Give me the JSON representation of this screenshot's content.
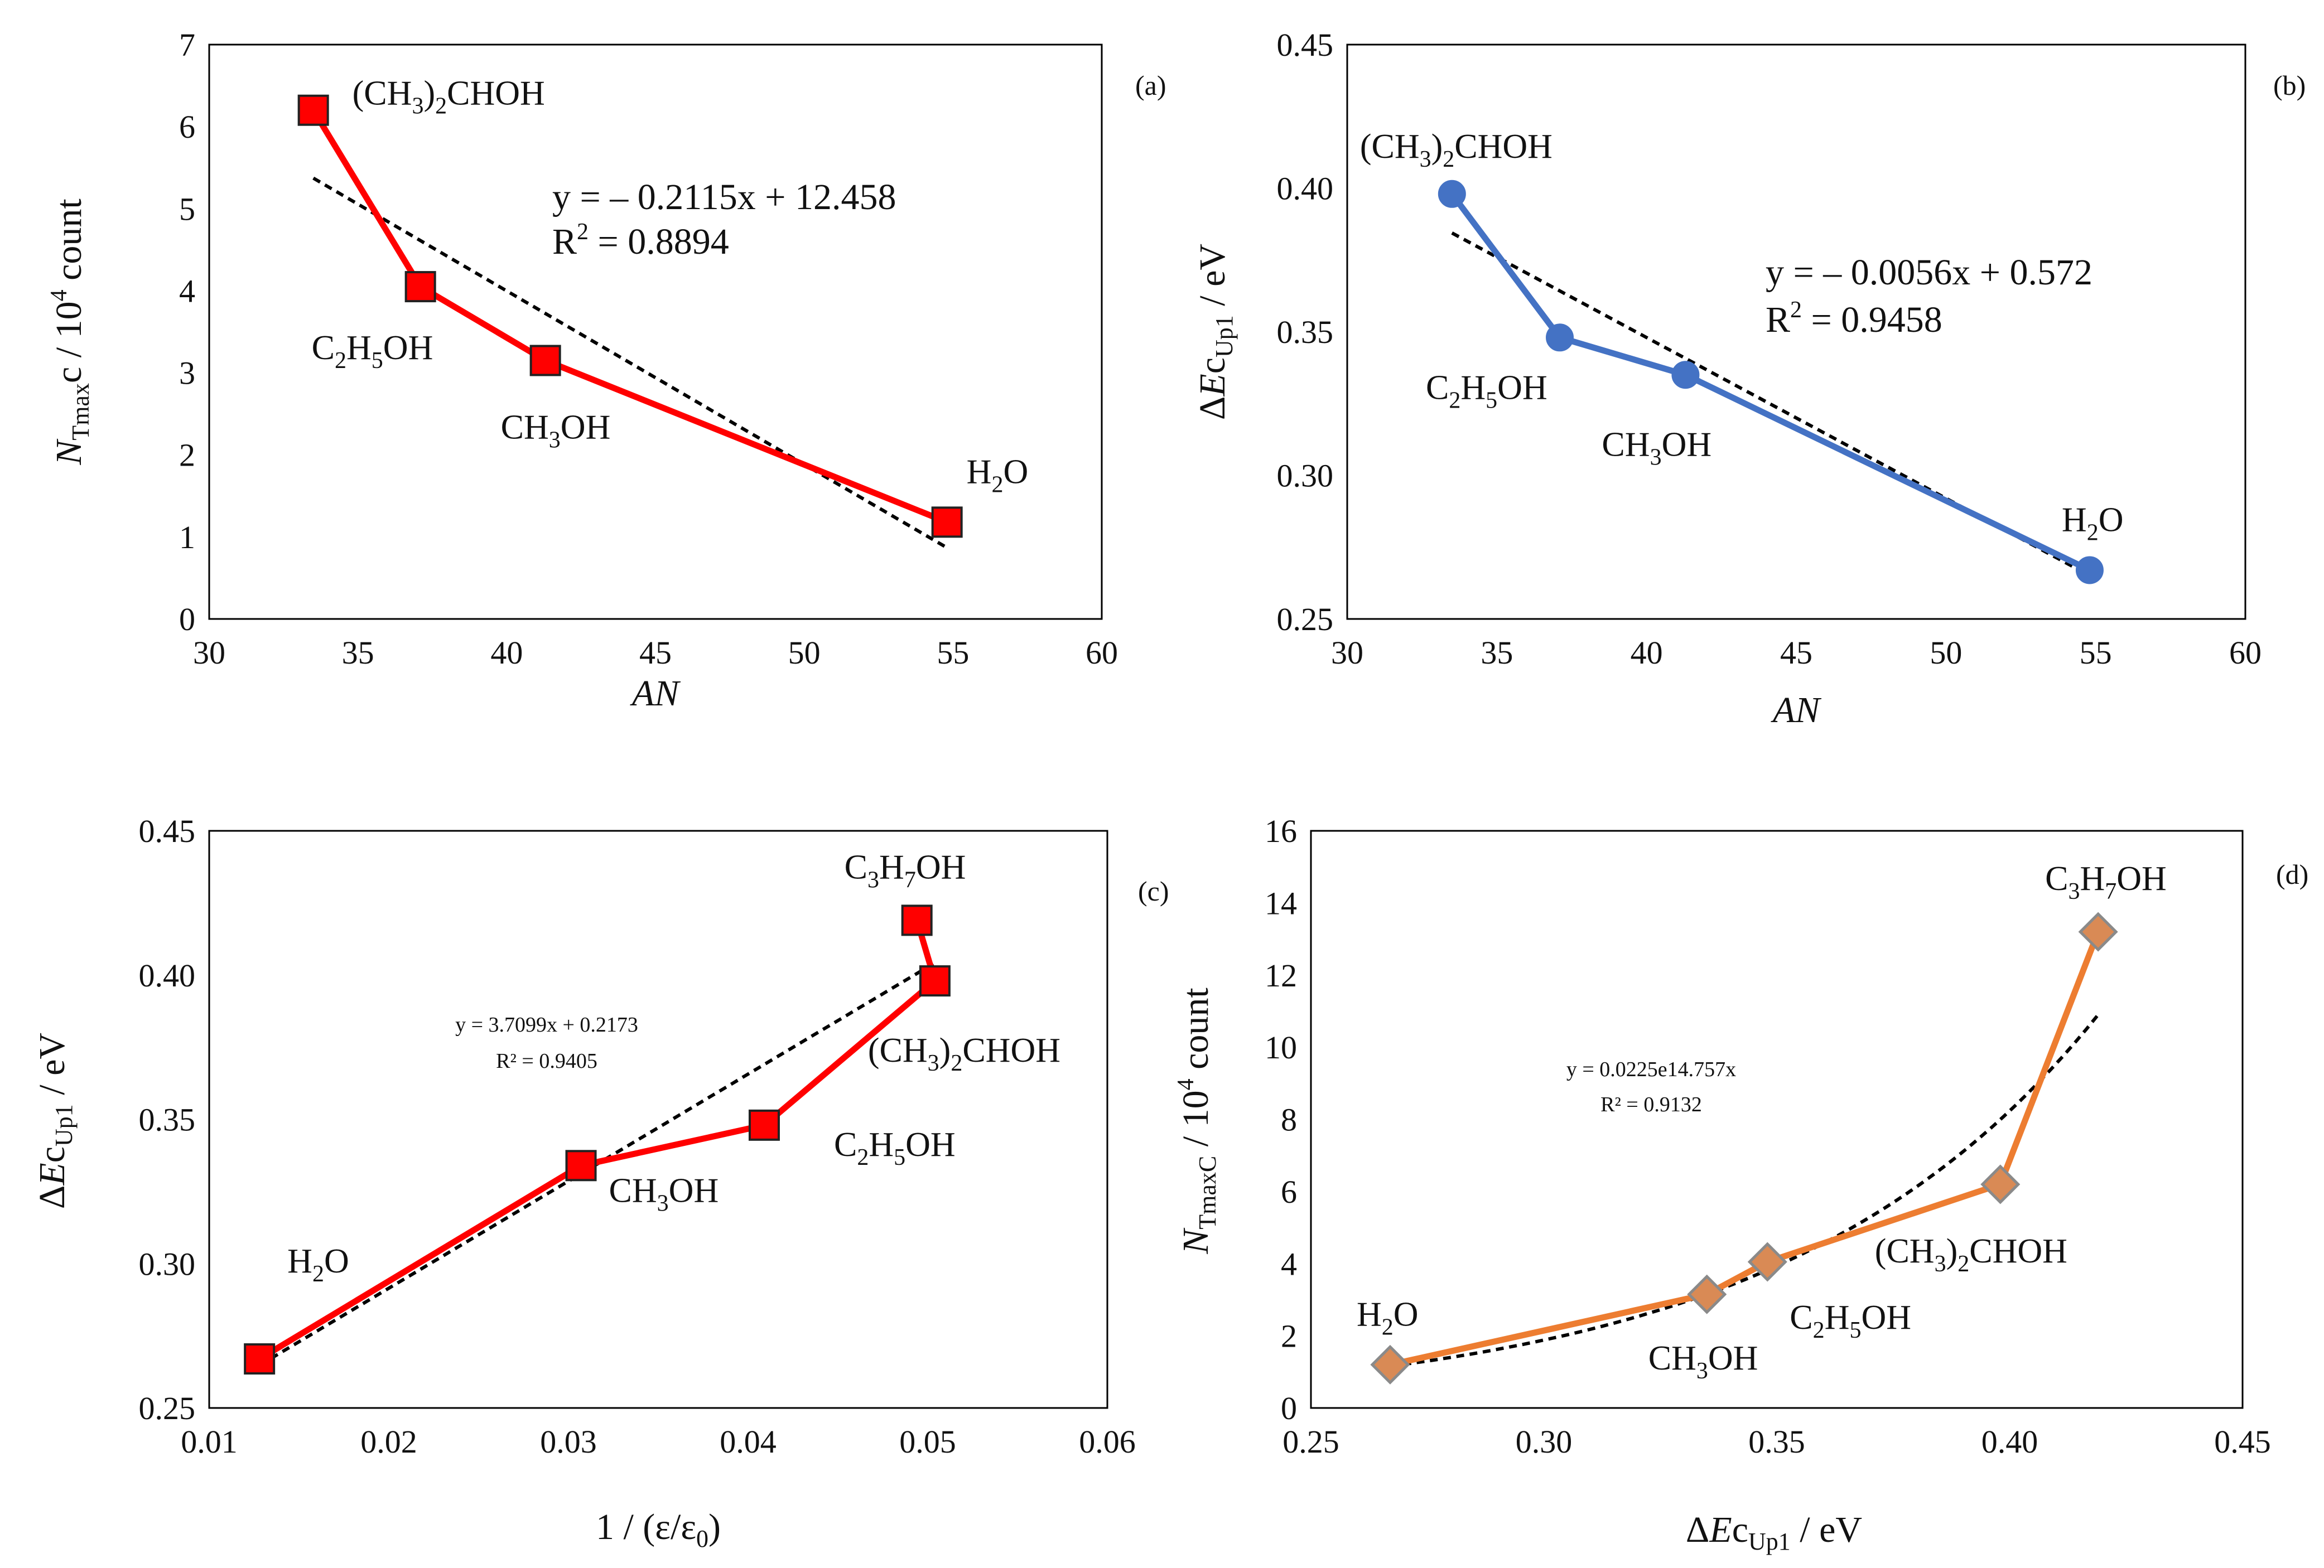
{
  "chart_data": [
    {
      "id": "a",
      "type": "line",
      "panel_tag": "(a)",
      "xlabel": "AN",
      "ylabel": "N_{Tmax}c / 10^4 count",
      "xlim": [
        30,
        60
      ],
      "ylim": [
        0,
        7
      ],
      "xticks": [
        30,
        35,
        40,
        45,
        50,
        55,
        60
      ],
      "yticks": [
        0,
        1,
        2,
        3,
        4,
        5,
        6,
        7
      ],
      "x_decimals": 0,
      "y_decimals": 0,
      "series": [
        {
          "marker": "square",
          "color": "#ff0000",
          "points": [
            {
              "x": 33.5,
              "y": 6.2,
              "label": "(CH3)2CHOH"
            },
            {
              "x": 37.1,
              "y": 4.05,
              "label": "C2H5OH"
            },
            {
              "x": 41.3,
              "y": 3.15,
              "label": "CH3OH"
            },
            {
              "x": 54.8,
              "y": 1.18,
              "label": "H2O"
            }
          ]
        }
      ],
      "trendline": {
        "type": "linear",
        "slope": -0.2115,
        "intercept": 12.458,
        "x_range": [
          33.5,
          54.8
        ]
      },
      "equation": "y = – 0.2115x + 12.458",
      "r_squared": "R2 = 0.8894"
    },
    {
      "id": "b",
      "type": "line",
      "panel_tag": "(b)",
      "xlabel": "AN",
      "ylabel": "ΔEc_{Up1} / eV",
      "xlim": [
        30,
        60
      ],
      "ylim": [
        0.25,
        0.45
      ],
      "xticks": [
        30,
        35,
        40,
        45,
        50,
        55,
        60
      ],
      "yticks": [
        0.25,
        0.3,
        0.35,
        0.4,
        0.45
      ],
      "x_decimals": 0,
      "y_decimals": 2,
      "series": [
        {
          "marker": "circle",
          "color": "#4472c4",
          "points": [
            {
              "x": 33.5,
              "y": 0.398,
              "label": "(CH3)2CHOH"
            },
            {
              "x": 37.1,
              "y": 0.348,
              "label": "C2H5OH"
            },
            {
              "x": 41.3,
              "y": 0.335,
              "label": "CH3OH"
            },
            {
              "x": 54.8,
              "y": 0.267,
              "label": "H2O"
            }
          ]
        }
      ],
      "trendline": {
        "type": "linear",
        "slope": -0.0056,
        "intercept": 0.572,
        "x_range": [
          33.5,
          54.8
        ]
      },
      "equation": "y = – 0.0056x + 0.572",
      "r_squared": "R2 = 0.9458"
    },
    {
      "id": "c",
      "type": "line",
      "panel_tag": "(c)",
      "xlabel": "1 / (ε/ε0)",
      "ylabel": "ΔEc_{Up1} / eV",
      "xlim": [
        0.01,
        0.06
      ],
      "ylim": [
        0.25,
        0.45
      ],
      "xticks": [
        0.01,
        0.02,
        0.03,
        0.04,
        0.05,
        0.06
      ],
      "yticks": [
        0.25,
        0.3,
        0.35,
        0.4,
        0.45
      ],
      "x_decimals": 2,
      "y_decimals": 2,
      "series": [
        {
          "marker": "square",
          "color": "#ff0000",
          "points": [
            {
              "x": 0.0128,
              "y": 0.267,
              "label": "H2O"
            },
            {
              "x": 0.0307,
              "y": 0.334,
              "label": "CH3OH"
            },
            {
              "x": 0.0409,
              "y": 0.348,
              "label": "C2H5OH"
            },
            {
              "x": 0.0504,
              "y": 0.398,
              "label": "(CH3)2CHOH"
            },
            {
              "x": 0.0494,
              "y": 0.419,
              "label": "C3H7OH"
            }
          ]
        }
      ],
      "trendline": {
        "type": "linear",
        "slope": 3.7099,
        "intercept": 0.2173,
        "x_range": [
          0.0128,
          0.0504
        ]
      },
      "equation": "y = 3.7099x + 0.2173",
      "r_squared": "R² = 0.9405"
    },
    {
      "id": "d",
      "type": "line",
      "panel_tag": "(d)",
      "xlabel": "ΔEc_{Up1} / eV",
      "ylabel": "N_{TmaxC} / 10^4 count",
      "xlim": [
        0.25,
        0.45
      ],
      "ylim": [
        0,
        16
      ],
      "xticks": [
        0.25,
        0.3,
        0.35,
        0.4,
        0.45
      ],
      "yticks": [
        0,
        2,
        4,
        6,
        8,
        10,
        12,
        14,
        16
      ],
      "x_decimals": 2,
      "y_decimals": 0,
      "series": [
        {
          "marker": "diamond",
          "color": "#ed7d31",
          "points": [
            {
              "x": 0.267,
              "y": 1.2,
              "label": "H2O"
            },
            {
              "x": 0.335,
              "y": 3.15,
              "label": "CH3OH"
            },
            {
              "x": 0.348,
              "y": 4.05,
              "label": "C2H5OH"
            },
            {
              "x": 0.398,
              "y": 6.2,
              "label": "(CH3)2CHOH"
            },
            {
              "x": 0.419,
              "y": 13.2,
              "label": "C3H7OH"
            }
          ]
        }
      ],
      "trendline": {
        "type": "exponential",
        "a": 0.0225,
        "b": 14.757,
        "x_range": [
          0.267,
          0.419
        ]
      },
      "equation": "y = 0.0225e14.757x",
      "r_squared": "R² = 0.9132"
    }
  ]
}
